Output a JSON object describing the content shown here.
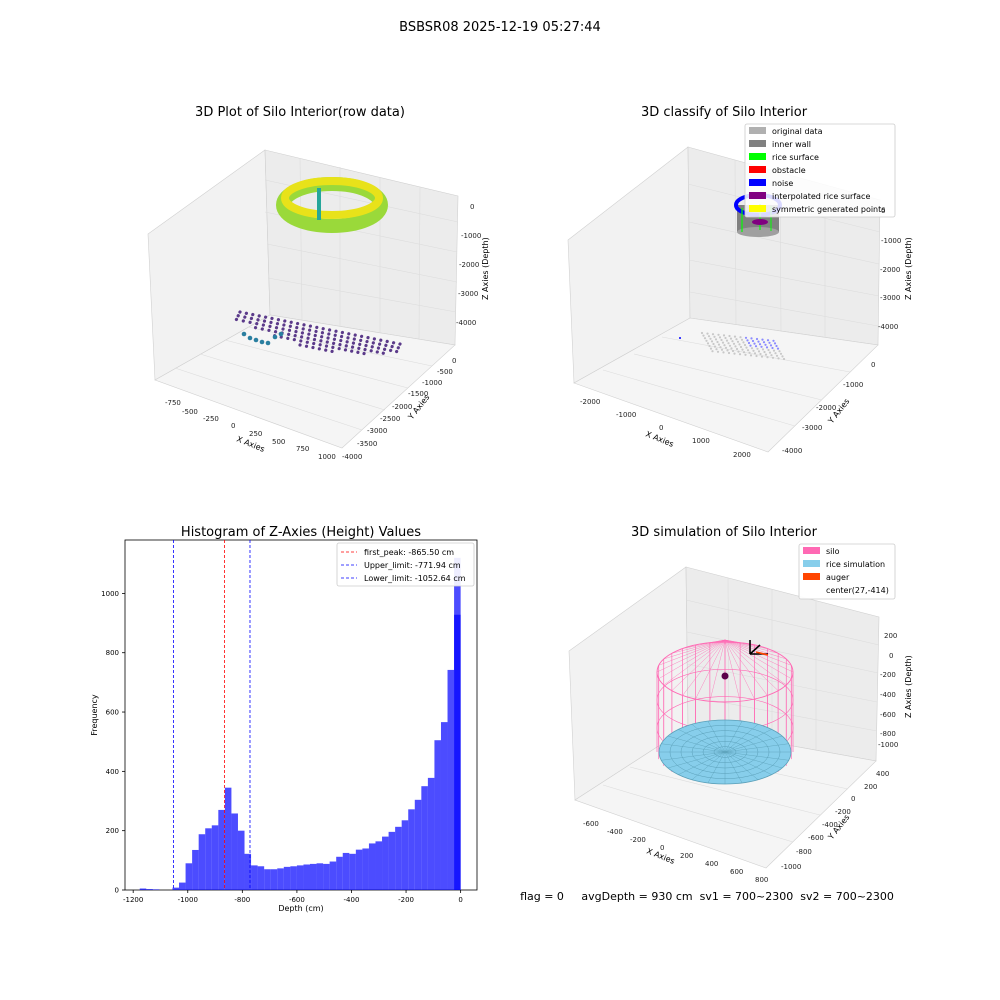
{
  "figure": {
    "suptitle": "BSBSR08 2025-12-19 05:27:44",
    "footer": "flag = 0     avgDepth = 930 cm  sv1 = 700~2300  sv2 = 700~2300"
  },
  "panels": {
    "raw": {
      "title": "3D Plot of Silo Interior(row data)",
      "xlabel": "X Axies",
      "ylabel": "Y Axies",
      "zlabel": "Z Axies (Depth)",
      "xticks": [
        "-750",
        "-500",
        "-250",
        "0",
        "250",
        "500",
        "750",
        "1000"
      ],
      "yticks": [
        "0",
        "-500",
        "-1000",
        "-1500",
        "-2000",
        "-2500",
        "-3000",
        "-3500",
        "-4000"
      ],
      "zticks": [
        "0",
        "-1000",
        "-2000",
        "-3000",
        "-4000"
      ]
    },
    "classify": {
      "title": "3D classify of Silo Interior",
      "xlabel": "X Axies",
      "ylabel": "Y Axies",
      "zlabel": "Z Axies (Depth)",
      "xticks": [
        "-2000",
        "-1000",
        "0",
        "1000",
        "2000"
      ],
      "yticks": [
        "0",
        "-1000",
        "-2000",
        "-3000",
        "-4000"
      ],
      "zticks": [
        "0",
        "-1000",
        "-2000",
        "-3000",
        "-4000"
      ],
      "legend": [
        {
          "label": "original data",
          "color": "#b0b0b0"
        },
        {
          "label": "inner wall",
          "color": "#808080"
        },
        {
          "label": "rice surface",
          "color": "#00ff00"
        },
        {
          "label": "obstacle",
          "color": "#ff0000"
        },
        {
          "label": "noise",
          "color": "#0000ff"
        },
        {
          "label": "interpolated rice surface",
          "color": "#800080"
        },
        {
          "label": "symmetric generated points",
          "color": "#ffff00"
        }
      ]
    },
    "sim": {
      "title": "3D simulation of Silo Interior",
      "xlabel": "X Axies",
      "ylabel": "Y Axies",
      "zlabel": "Z Axies (Depth)",
      "xticks": [
        "-600",
        "-400",
        "-200",
        "0",
        "200",
        "400",
        "600",
        "800"
      ],
      "yticks": [
        "400",
        "200",
        "0",
        "-200",
        "-400",
        "-600",
        "-800",
        "-1000"
      ],
      "zticks": [
        "200",
        "0",
        "-200",
        "-400",
        "-600",
        "-800",
        "-1000"
      ],
      "legend": [
        {
          "label": "silo",
          "color": "#ff69b4"
        },
        {
          "label": "rice simulation",
          "color": "#87ceeb"
        },
        {
          "label": "auger",
          "color": "#ff4500"
        },
        {
          "label": "center(27,-414)",
          "color": ""
        }
      ]
    }
  },
  "chart_data": {
    "type": "bar",
    "title": "Histogram of Z-Axies (Height) Values",
    "xlabel": "Depth (cm)",
    "ylabel": "Frequency",
    "xlim": [
      -1230,
      60
    ],
    "ylim": [
      0,
      1180
    ],
    "xticks": [
      -1200,
      -1000,
      -800,
      -600,
      -400,
      -200,
      0
    ],
    "yticks": [
      0,
      200,
      400,
      600,
      800,
      1000
    ],
    "bar_color": "#0000ff",
    "bin_width": 24,
    "bin_starts": [
      -1176,
      -1152,
      -1128,
      -1104,
      -1080,
      -1056,
      -1032,
      -1008,
      -984,
      -960,
      -936,
      -912,
      -888,
      -864,
      -840,
      -816,
      -792,
      -768,
      -744,
      -720,
      -696,
      -672,
      -648,
      -624,
      -600,
      -576,
      -552,
      -528,
      -504,
      -480,
      -456,
      -432,
      -408,
      -384,
      -360,
      -336,
      -312,
      -288,
      -264,
      -240,
      -216,
      -192,
      -168,
      -144,
      -120,
      -96,
      -72,
      -48,
      -24
    ],
    "counts": [
      5,
      3,
      2,
      0,
      0,
      8,
      25,
      90,
      135,
      188,
      208,
      218,
      270,
      345,
      258,
      200,
      122,
      83,
      80,
      70,
      70,
      73,
      78,
      80,
      83,
      86,
      88,
      90,
      88,
      96,
      112,
      125,
      122,
      136,
      140,
      157,
      164,
      180,
      196,
      213,
      235,
      272,
      304,
      350,
      378,
      505,
      566,
      742,
      928
    ],
    "last_bin_count": 1120,
    "legend_position": "upper-right",
    "vlines": [
      {
        "label": "first_peak: -865.50 cm",
        "x": -865.5,
        "color": "#ff0000"
      },
      {
        "label": "Upper_limit: -771.94 cm",
        "x": -771.94,
        "color": "#0000ff"
      },
      {
        "label": "Lower_limit: -1052.64 cm",
        "x": -1052.64,
        "color": "#0000ff"
      }
    ]
  }
}
